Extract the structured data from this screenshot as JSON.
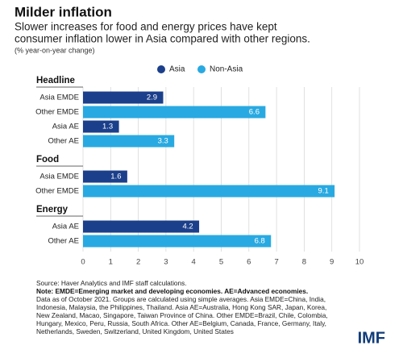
{
  "chart_data": {
    "type": "bar",
    "title": "Milder inflation",
    "subtitle": [
      "Slower increases for food and energy prices have kept",
      "consumer inflation lower in Asia compared with other regions."
    ],
    "unit_note": "(% year-on-year change)",
    "series": [
      {
        "name": "Asia",
        "color": "#1b3f8b"
      },
      {
        "name": "Non-Asia",
        "color": "#29a9e1"
      }
    ],
    "groups": [
      {
        "name": "Headline",
        "categories": [
          "Asia EMDE",
          "Other EMDE",
          "Asia AE",
          "Other AE"
        ],
        "values": [
          2.9,
          6.6,
          1.3,
          3.3
        ],
        "series_index": [
          0,
          1,
          0,
          1
        ]
      },
      {
        "name": "Food",
        "categories": [
          "Asia EMDE",
          "Other EMDE"
        ],
        "values": [
          1.6,
          9.1
        ],
        "series_index": [
          0,
          1
        ]
      },
      {
        "name": "Energy",
        "categories": [
          "Asia AE",
          "Other AE"
        ],
        "values": [
          4.2,
          6.8
        ],
        "series_index": [
          0,
          1
        ]
      }
    ],
    "xlim": [
      0,
      10
    ],
    "xticks": [
      0,
      1,
      2,
      3,
      4,
      5,
      6,
      7,
      8,
      9,
      10
    ],
    "grid": true,
    "footer": {
      "source": "Source: Haver Analytics and IMF staff calculations.",
      "note": "Note: EMDE=Emerging market and developing economies. AE=Advanced economies.",
      "lines": [
        "Data as of October 2021. Groups are calculated using simple averages. Asia EMDE=China, India,",
        "Indonesia, Malaysia, the Philippines, Thailand. Asia AE=Australia, Hong Kong SAR, Japan, Korea,",
        "New Zealand, Macao, Singapore, Taiwan Province of China. Other EMDE=Brazil, Chile, Colombia,",
        "Hungary, Mexico, Peru, Russia, South Africa. Other AE=Belgium, Canada, France, Germany, Italy,",
        "Netherlands, Sweden, Switzerland, United Kingdom, United States"
      ]
    },
    "logo": "IMF"
  }
}
